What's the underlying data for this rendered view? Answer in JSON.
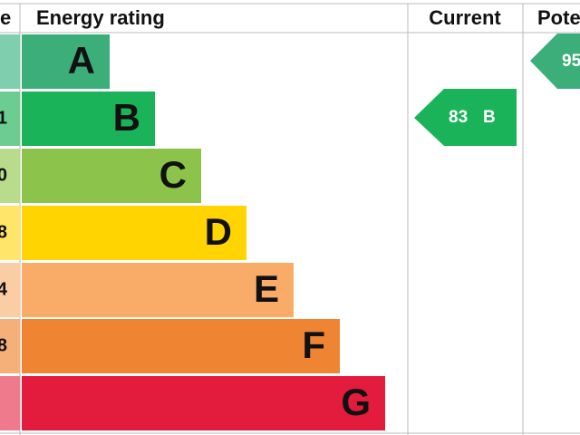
{
  "header": {
    "score": "e",
    "rating": "Energy rating",
    "current": "Current",
    "potential": "Pote"
  },
  "rows": [
    {
      "band": "A"
    },
    {
      "band": "B",
      "score": "1"
    },
    {
      "band": "C",
      "score": "0"
    },
    {
      "band": "D",
      "score": "8"
    },
    {
      "band": "E",
      "score": "4"
    },
    {
      "band": "F",
      "score": "8"
    },
    {
      "band": "G"
    }
  ],
  "current": {
    "score": "83",
    "band": "B"
  },
  "potential": {
    "score": "95"
  }
}
